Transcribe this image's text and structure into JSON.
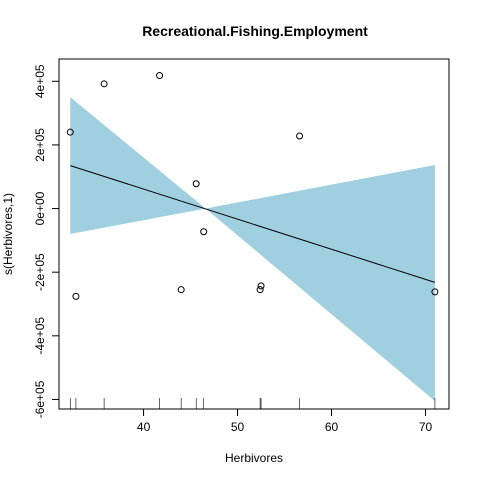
{
  "chart_data": {
    "type": "scatter",
    "title": "Recreational.Fishing.Employment",
    "xlabel": "Herbivores",
    "ylabel": "s(Herbivores,1)",
    "xlim": [
      31.0,
      72.5
    ],
    "ylim": [
      -630000,
      470000
    ],
    "x_ticks": [
      40,
      50,
      60,
      70
    ],
    "x_tick_labels": [
      "40",
      "50",
      "60",
      "70"
    ],
    "y_ticks": [
      -600000,
      -400000,
      -200000,
      0,
      200000,
      400000
    ],
    "y_tick_labels": [
      "-6e+05",
      "-4e+05",
      "-2e+05",
      "0e+00",
      "2e+05",
      "4e+05"
    ],
    "fit_line": {
      "x": [
        32.2,
        71.0
      ],
      "y": [
        135000,
        -232000
      ]
    },
    "confidence_band": {
      "x": [
        32.2,
        46.6,
        71.0
      ],
      "upper": [
        350000,
        0,
        137000
      ],
      "lower": [
        -80000,
        0,
        -605000
      ],
      "color": "#a0d0e0"
    },
    "points": [
      {
        "x": 32.2,
        "y": 240000
      },
      {
        "x": 32.8,
        "y": -276000
      },
      {
        "x": 35.8,
        "y": 392000
      },
      {
        "x": 41.7,
        "y": 418000
      },
      {
        "x": 44.0,
        "y": -255000
      },
      {
        "x": 45.6,
        "y": 78000
      },
      {
        "x": 46.4,
        "y": -73000
      },
      {
        "x": 52.4,
        "y": -255000
      },
      {
        "x": 52.5,
        "y": -243000
      },
      {
        "x": 56.6,
        "y": 228000
      },
      {
        "x": 71.0,
        "y": -262000
      }
    ],
    "rug": [
      32.2,
      32.8,
      35.8,
      41.7,
      44.0,
      45.6,
      46.4,
      52.4,
      52.5,
      56.6,
      71.0
    ],
    "line_color": "#000000",
    "point_color": "#000000"
  }
}
